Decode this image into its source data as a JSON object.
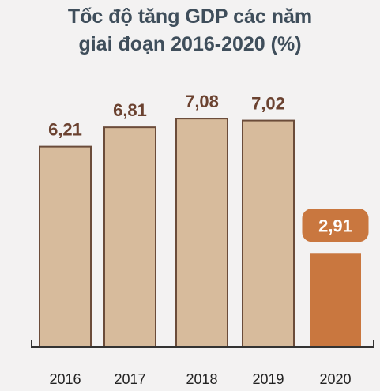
{
  "chart_data": {
    "type": "bar",
    "title_lines": [
      "Tốc độ tăng GDP các năm",
      "giai đoạn 2016-2020 (%)"
    ],
    "categories": [
      "2016",
      "2017",
      "2018",
      "2019",
      "2020"
    ],
    "values": [
      6.21,
      6.81,
      7.08,
      7.02,
      2.91
    ],
    "value_labels": [
      "6,21",
      "6,81",
      "7,08",
      "7,02",
      "2,91"
    ],
    "highlight_index": 4,
    "xlabel": "",
    "ylabel": "",
    "ylim": [
      0,
      7.5
    ],
    "grid": false,
    "legend": "none",
    "colors": {
      "bar_fill": "#d7bb9c",
      "bar_stroke": "#6b4c3a",
      "label_text": "#6b4230",
      "highlight_fill": "#c9773f",
      "highlight_label_text": "#ffffff",
      "axis": "#333333",
      "title": "#3f4e5b"
    }
  }
}
